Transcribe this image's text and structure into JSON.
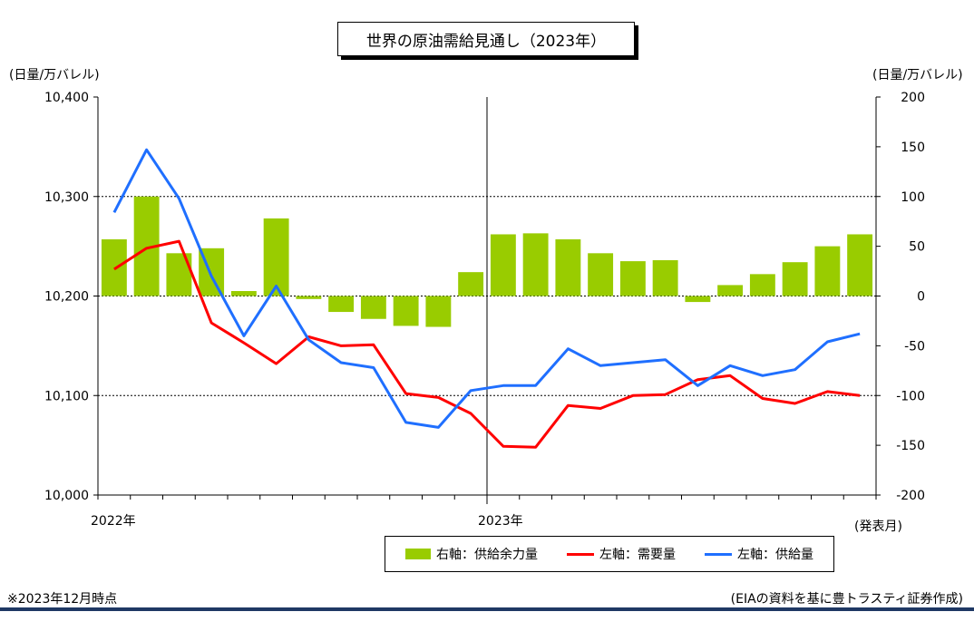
{
  "title": "世界の原油需給見通し（2023年）",
  "unit_left": "(日量/万バレル)",
  "unit_right": "(日量/万バレル)",
  "year_labels": [
    "2022年",
    "2023年"
  ],
  "x_unit": "(発表月)",
  "legend": {
    "bar": "右軸：供給余力量",
    "demand": "左軸：需要量",
    "supply": "左軸：供給量"
  },
  "footnote": "※2023年12月時点",
  "source": "(EIAの資料を基に豊トラスティ証券作成)",
  "colors": {
    "bar": "#99cc00",
    "demand": "#ff0000",
    "supply": "#1f6fff"
  },
  "chart_data": {
    "type": "bar",
    "title": "世界の原油需給見通し（2023年）",
    "left_axis": {
      "ylim": [
        10000,
        10400
      ],
      "ticks": [
        "10,000",
        "10,100",
        "10,200",
        "10,300",
        "10,400"
      ],
      "tick_values": [
        10000,
        10100,
        10200,
        10300,
        10400
      ]
    },
    "right_axis": {
      "ylim": [
        -200,
        200
      ],
      "ticks": [
        "-200",
        "-150",
        "-100",
        "-50",
        "0",
        "50",
        "100",
        "150",
        "200"
      ],
      "tick_values": [
        -200,
        -150,
        -100,
        -50,
        0,
        50,
        100,
        150,
        200
      ]
    },
    "categories": [
      "2022-01",
      "2022-02",
      "2022-03",
      "2022-04",
      "2022-05",
      "2022-06",
      "2022-07",
      "2022-08",
      "2022-09",
      "2022-10",
      "2022-11",
      "2022-12",
      "2023-01",
      "2023-02",
      "2023-03",
      "2023-04",
      "2023-05",
      "2023-06",
      "2023-07",
      "2023-08",
      "2023-09",
      "2023-10",
      "2023-11",
      "2023-12"
    ],
    "series": [
      {
        "name": "右軸：供給余力量",
        "type": "bar",
        "axis": "right",
        "values": [
          57,
          100,
          43,
          48,
          5,
          78,
          -3,
          -16,
          -23,
          -30,
          -31,
          24,
          62,
          63,
          57,
          43,
          35,
          36,
          -6,
          11,
          22,
          34,
          50,
          62
        ]
      },
      {
        "name": "左軸：需要量",
        "type": "line",
        "axis": "left",
        "values": [
          10227,
          10248,
          10255,
          10173,
          10153,
          10132,
          10159,
          10150,
          10151,
          10102,
          10098,
          10082,
          10049,
          10048,
          10090,
          10087,
          10100,
          10101,
          10116,
          10120,
          10097,
          10092,
          10104,
          10100
        ]
      },
      {
        "name": "左軸：供給量",
        "type": "line",
        "axis": "left",
        "values": [
          10284,
          10347,
          10298,
          10220,
          10160,
          10210,
          10156,
          10133,
          10128,
          10073,
          10068,
          10105,
          10110,
          10110,
          10147,
          10130,
          10133,
          10136,
          10110,
          10130,
          10120,
          10126,
          10154,
          10162
        ]
      }
    ],
    "grid": true,
    "legend_position": "bottom"
  }
}
